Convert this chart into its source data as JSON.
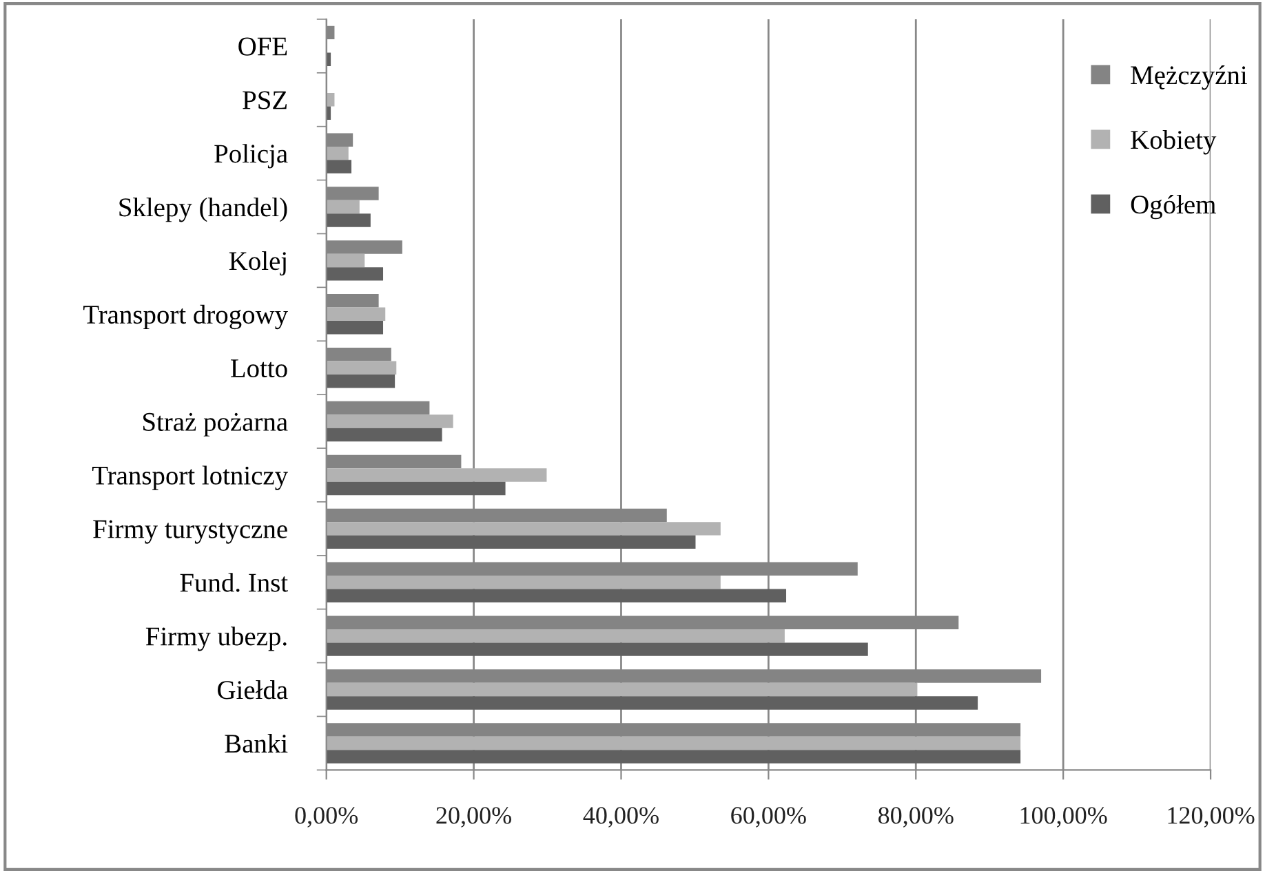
{
  "chart_data": {
    "type": "bar",
    "orientation": "horizontal",
    "categories": [
      "OFE",
      "PSZ",
      "Policja",
      "Sklepy (handel)",
      "Kolej",
      "Transport drogowy",
      "Lotto",
      "Straż pożarna",
      "Transport lotniczy",
      "Firmy turystyczne",
      "Fund. Inst",
      "Firmy ubezp.",
      "Giełda",
      "Banki"
    ],
    "series": [
      {
        "name": "Mężczyźni",
        "color": "#848484",
        "values": [
          1.1,
          0,
          3.6,
          7.1,
          10.3,
          7.1,
          8.8,
          14.0,
          18.3,
          46.2,
          72.1,
          85.8,
          97.0,
          94.2
        ]
      },
      {
        "name": "Kobiety",
        "color": "#b2b2b2",
        "values": [
          0,
          1.1,
          3.0,
          4.5,
          5.2,
          8.0,
          9.5,
          17.2,
          29.9,
          53.5,
          53.5,
          62.2,
          80.2,
          94.2
        ]
      },
      {
        "name": "Ogółem",
        "color": "#606060",
        "values": [
          0.6,
          0.6,
          3.4,
          6.0,
          7.7,
          7.7,
          9.3,
          15.7,
          24.3,
          50.1,
          62.4,
          73.5,
          88.4,
          94.2
        ]
      }
    ],
    "xlim": [
      0,
      120
    ],
    "xticks": [
      {
        "value": 0,
        "label": "0,00%"
      },
      {
        "value": 20,
        "label": "20,00%"
      },
      {
        "value": 40,
        "label": "40,00%"
      },
      {
        "value": 60,
        "label": "60,00%"
      },
      {
        "value": 80,
        "label": "80,00%"
      },
      {
        "value": 100,
        "label": "100,00%"
      },
      {
        "value": 120,
        "label": "120,00%"
      }
    ],
    "grid": "x",
    "legend": "top right",
    "marker": "square"
  }
}
